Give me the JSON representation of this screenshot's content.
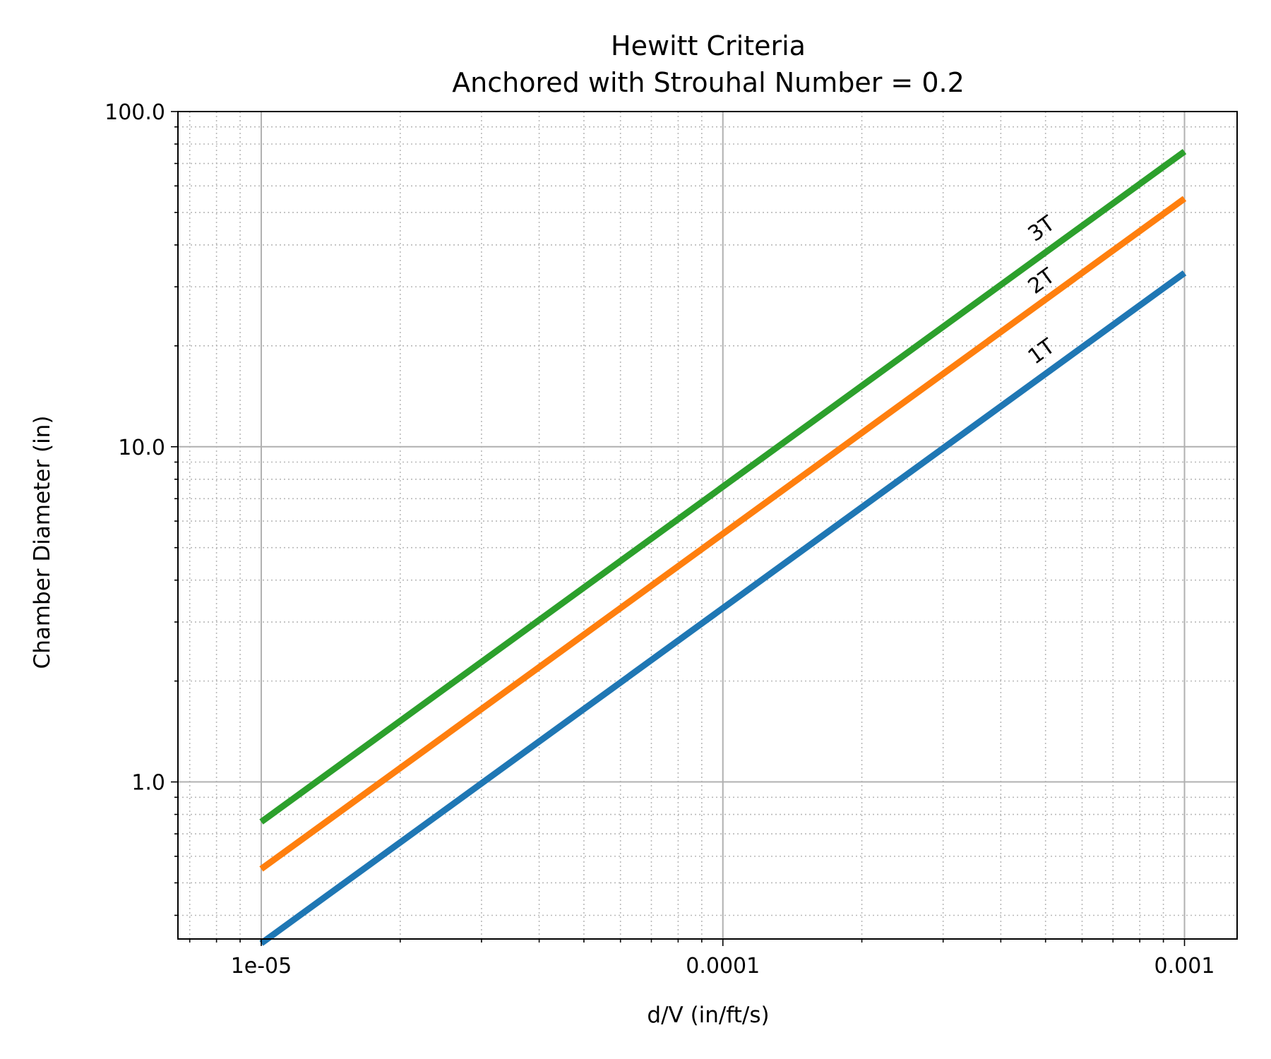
{
  "chart_data": {
    "type": "line",
    "title": "Hewitt Criteria",
    "subtitle": "Anchored with Strouhal Number = 0.2",
    "xlabel": "d/V (in/ft/s)",
    "ylabel": "Chamber Diameter (in)",
    "xscale": "log",
    "yscale": "log",
    "xlim": [
      6.6e-06,
      0.0013
    ],
    "ylim": [
      0.34,
      100
    ],
    "x_ticks": [
      {
        "value": 1e-05,
        "label": "1e-05"
      },
      {
        "value": 0.0001,
        "label": "0.0001"
      },
      {
        "value": 0.001,
        "label": "0.001"
      }
    ],
    "y_ticks": [
      {
        "value": 1,
        "label": "1.0"
      },
      {
        "value": 10,
        "label": "10.0"
      },
      {
        "value": 100,
        "label": "100.0"
      }
    ],
    "grid": {
      "major": true,
      "minor": true
    },
    "legend": "none",
    "series": [
      {
        "name": "1T",
        "color": "#1f77b4",
        "x": [
          1e-05,
          0.001
        ],
        "y": [
          0.33,
          33
        ]
      },
      {
        "name": "2T",
        "color": "#ff7f0e",
        "x": [
          1e-05,
          0.001
        ],
        "y": [
          0.55,
          55
        ]
      },
      {
        "name": "3T",
        "color": "#2ca02c",
        "x": [
          1e-05,
          0.001
        ],
        "y": [
          0.76,
          76
        ]
      }
    ],
    "annotations": [
      {
        "series": "1T",
        "text": "1T",
        "x": 0.0005,
        "y": 18.5
      },
      {
        "series": "2T",
        "text": "2T",
        "x": 0.0005,
        "y": 30
      },
      {
        "series": "3T",
        "text": "3T",
        "x": 0.0005,
        "y": 43
      }
    ]
  }
}
